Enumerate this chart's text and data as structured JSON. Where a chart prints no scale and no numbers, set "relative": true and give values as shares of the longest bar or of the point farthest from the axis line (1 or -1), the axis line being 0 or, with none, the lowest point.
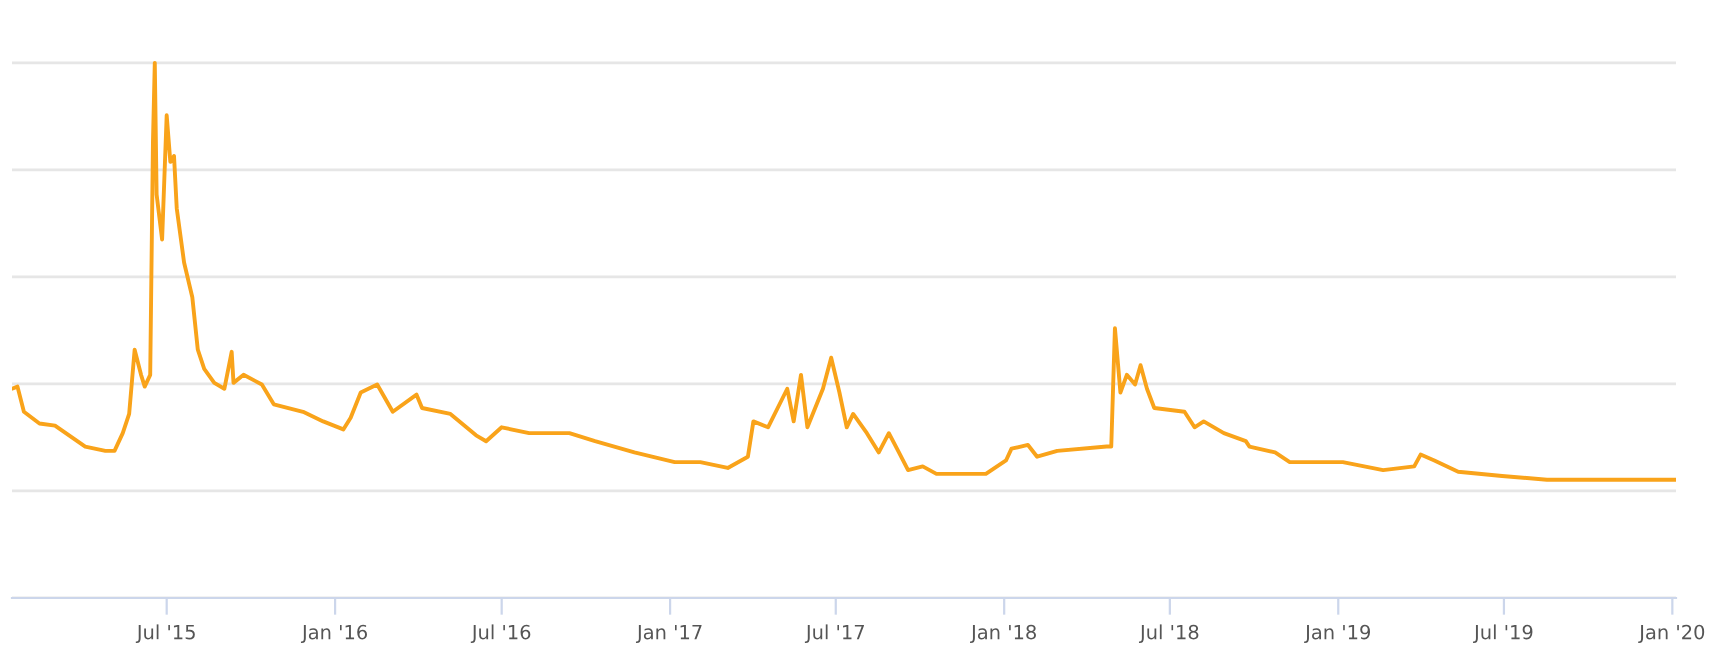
{
  "chart_data": {
    "type": "line",
    "relative": true,
    "grid": "y",
    "line_style": "solid",
    "x": [
      "2015-01-13",
      "2015-01-19",
      "2015-01-26",
      "2015-02-12",
      "2015-03-01",
      "2015-04-03",
      "2015-04-25",
      "2015-05-05",
      "2015-05-14",
      "2015-05-21",
      "2015-05-27",
      "2015-06-03",
      "2015-06-07",
      "2015-06-13",
      "2015-06-16",
      "2015-06-18",
      "2015-06-20",
      "2015-06-26",
      "2015-07-01",
      "2015-07-05",
      "2015-07-09",
      "2015-07-12",
      "2015-07-20",
      "2015-07-29",
      "2015-08-04",
      "2015-08-11",
      "2015-08-22",
      "2015-09-02",
      "2015-09-10",
      "2015-09-12",
      "2015-09-23",
      "2015-10-13",
      "2015-10-26",
      "2015-11-27",
      "2015-12-19",
      "2016-01-10",
      "2016-01-18",
      "2016-01-29",
      "2016-02-16",
      "2016-03-04",
      "2016-03-30",
      "2016-04-05",
      "2016-05-06",
      "2016-06-03",
      "2016-06-14",
      "2016-07-01",
      "2016-07-31",
      "2016-09-13",
      "2016-10-11",
      "2016-11-23",
      "2017-01-06",
      "2017-02-03",
      "2017-03-05",
      "2017-03-27",
      "2017-04-02",
      "2017-04-18",
      "2017-05-09",
      "2017-05-16",
      "2017-05-24",
      "2017-05-31",
      "2017-06-17",
      "2017-06-26",
      "2017-07-05",
      "2017-07-13",
      "2017-07-20",
      "2017-08-04",
      "2017-08-17",
      "2017-08-28",
      "2017-09-08",
      "2017-09-18",
      "2017-10-04",
      "2017-10-19",
      "2017-12-12",
      "2018-01-03",
      "2018-01-09",
      "2018-01-27",
      "2018-02-06",
      "2018-02-28",
      "2018-04-23",
      "2018-04-28",
      "2018-05-02",
      "2018-05-08",
      "2018-05-15",
      "2018-05-24",
      "2018-05-30",
      "2018-06-06",
      "2018-06-14",
      "2018-07-17",
      "2018-07-28",
      "2018-08-07",
      "2018-08-29",
      "2018-09-22",
      "2018-09-26",
      "2018-10-24",
      "2018-11-09",
      "2018-12-07",
      "2019-01-06",
      "2019-02-19",
      "2019-03-25",
      "2019-04-01",
      "2019-04-16",
      "2019-05-12",
      "2019-06-29",
      "2019-08-17",
      "2019-10-28",
      "2020-01-05"
    ],
    "series": [
      {
        "color": "#f9a31a",
        "values": [
          0.391,
          0.395,
          0.348,
          0.326,
          0.322,
          0.283,
          0.275,
          0.275,
          0.308,
          0.344,
          0.464,
          0.417,
          0.395,
          0.417,
          0.851,
          1,
          0.754,
          0.67,
          0.902,
          0.815,
          0.826,
          0.728,
          0.627,
          0.562,
          0.464,
          0.428,
          0.402,
          0.391,
          0.46,
          0.402,
          0.417,
          0.399,
          0.362,
          0.348,
          0.33,
          0.315,
          0.337,
          0.384,
          0.399,
          0.348,
          0.38,
          0.355,
          0.344,
          0.304,
          0.293,
          0.319,
          0.308,
          0.308,
          0.293,
          0.272,
          0.254,
          0.254,
          0.243,
          0.264,
          0.33,
          0.319,
          0.391,
          0.33,
          0.417,
          0.319,
          0.391,
          0.449,
          0.384,
          0.319,
          0.344,
          0.308,
          0.272,
          0.308,
          0.272,
          0.239,
          0.246,
          0.232,
          0.232,
          0.257,
          0.279,
          0.286,
          0.264,
          0.275,
          0.283,
          0.283,
          0.504,
          0.384,
          0.417,
          0.399,
          0.435,
          0.391,
          0.355,
          0.348,
          0.319,
          0.33,
          0.308,
          0.293,
          0.283,
          0.272,
          0.254,
          0.254,
          0.254,
          0.239,
          0.246,
          0.268,
          0.257,
          0.236,
          0.228,
          0.221,
          0.221,
          0.221
        ]
      }
    ],
    "xlim": [
      "2015-01-13",
      "2020-01-05"
    ],
    "xticks": [
      {
        "value": "2015-07-01",
        "label": "Jul '15"
      },
      {
        "value": "2016-01-01",
        "label": "Jan '16"
      },
      {
        "value": "2016-07-01",
        "label": "Jul '16"
      },
      {
        "value": "2017-01-01",
        "label": "Jan '17"
      },
      {
        "value": "2017-07-01",
        "label": "Jul '17"
      },
      {
        "value": "2018-01-01",
        "label": "Jan '18"
      },
      {
        "value": "2018-07-01",
        "label": "Jul '18"
      },
      {
        "value": "2019-01-01",
        "label": "Jan '19"
      },
      {
        "value": "2019-07-01",
        "label": "Jul '19"
      },
      {
        "value": "2020-01-01",
        "label": "Jan '20"
      }
    ]
  }
}
